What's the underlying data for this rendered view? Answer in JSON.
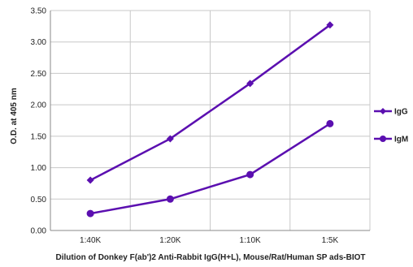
{
  "chart_data": {
    "type": "line",
    "categories": [
      "1:40K",
      "1:20K",
      "1:10K",
      "1:5K"
    ],
    "series": [
      {
        "name": "IgG",
        "values": [
          0.8,
          1.46,
          2.34,
          3.27
        ],
        "color": "#5B0FB0",
        "marker": "diamond"
      },
      {
        "name": "IgM",
        "values": [
          0.27,
          0.5,
          0.89,
          1.7
        ],
        "color": "#5B0FB0",
        "marker": "circle"
      }
    ],
    "title": "",
    "xlabel": "Dilution of Donkey F(ab')2 Anti-Rabbit IgG(H+L), Mouse/Rat/Human SP ads-BIOT",
    "ylabel": "O.D. at 405 nm",
    "ylim": [
      0,
      3.5
    ],
    "yticks": [
      "0.00",
      "0.50",
      "1.00",
      "1.50",
      "2.00",
      "2.50",
      "3.00",
      "3.50"
    ],
    "grid": true,
    "legend_position": "right"
  }
}
